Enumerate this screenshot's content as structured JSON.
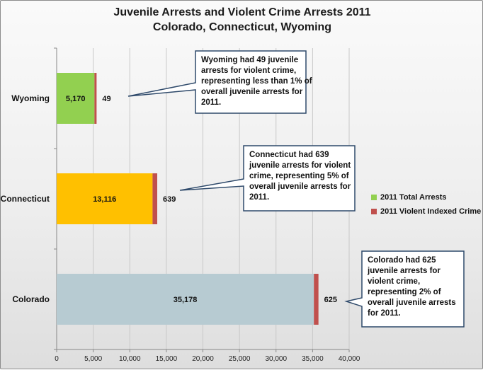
{
  "chart_data": {
    "type": "bar",
    "orientation": "horizontal",
    "stacked": true,
    "title": "Juvenile Arrests and Violent Crime Arrests 2011",
    "subtitle": "Colorado, Connecticut, Wyoming",
    "categories": [
      "Wyoming",
      "Connecticut",
      "Colorado"
    ],
    "series": [
      {
        "name": "2011 Total Arrests",
        "values": [
          5170,
          13116,
          35178
        ],
        "labels": [
          "5,170",
          "13,116",
          "35,178"
        ]
      },
      {
        "name": "2011 Violent Indexed Crime",
        "values": [
          49,
          639,
          625
        ],
        "labels": [
          "49",
          "639",
          "625"
        ]
      }
    ],
    "bar_colors": [
      "#92d050",
      "#ffc000",
      "#b7cbd2"
    ],
    "violent_color": "#c0504d",
    "legend_colors": [
      "#92d050",
      "#c0504d"
    ],
    "xlim": [
      0,
      40000
    ],
    "xticks": [
      "0",
      "5,000",
      "10,000",
      "15,000",
      "20,000",
      "25,000",
      "30,000",
      "35,000",
      "40,000"
    ],
    "grid": true,
    "legend_position": "right",
    "annotations": [
      {
        "category": "Wyoming",
        "lines": [
          "Wyoming had 49 juvenile",
          "arrests for violent crime,",
          "representing less than 1% of",
          "overall juvenile arrests for",
          "2011."
        ]
      },
      {
        "category": "Connecticut",
        "lines": [
          "Connecticut had 639",
          "juvenile arrests for violent",
          "crime, representing 5% of",
          "overall juvenile arrests for",
          "2011."
        ]
      },
      {
        "category": "Colorado",
        "lines": [
          "Colorado had 625",
          "juvenile arrests for",
          "violent crime,",
          "representing 2% of",
          "overall juvenile arrests",
          "for 2011."
        ]
      }
    ]
  }
}
